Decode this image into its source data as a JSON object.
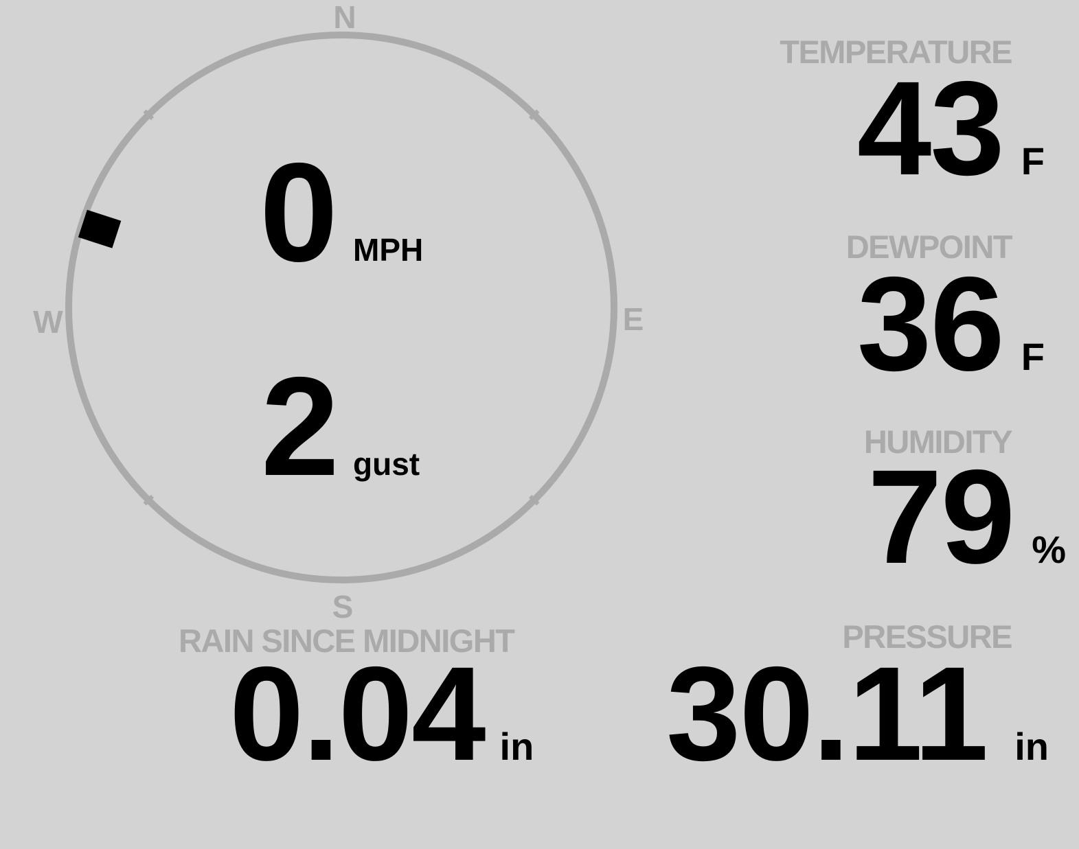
{
  "wind": {
    "speed": "0",
    "speed_unit": "MPH",
    "gust": "2",
    "gust_unit": "gust",
    "direction_deg": 288,
    "compass": {
      "n": "N",
      "e": "E",
      "s": "S",
      "w": "W"
    }
  },
  "temperature": {
    "label": "TEMPERATURE",
    "value": "43",
    "unit": "F"
  },
  "dewpoint": {
    "label": "DEWPOINT",
    "value": "36",
    "unit": "F"
  },
  "humidity": {
    "label": "HUMIDITY",
    "value": "79",
    "unit": "%"
  },
  "rain": {
    "label": "RAIN SINCE MIDNIGHT",
    "value": "0.04",
    "unit": "in"
  },
  "pressure": {
    "label": "PRESSURE",
    "value": "30.11",
    "unit": "in"
  },
  "colors": {
    "background": "#d3d3d3",
    "muted": "#aaaaaa",
    "text": "#000000"
  }
}
